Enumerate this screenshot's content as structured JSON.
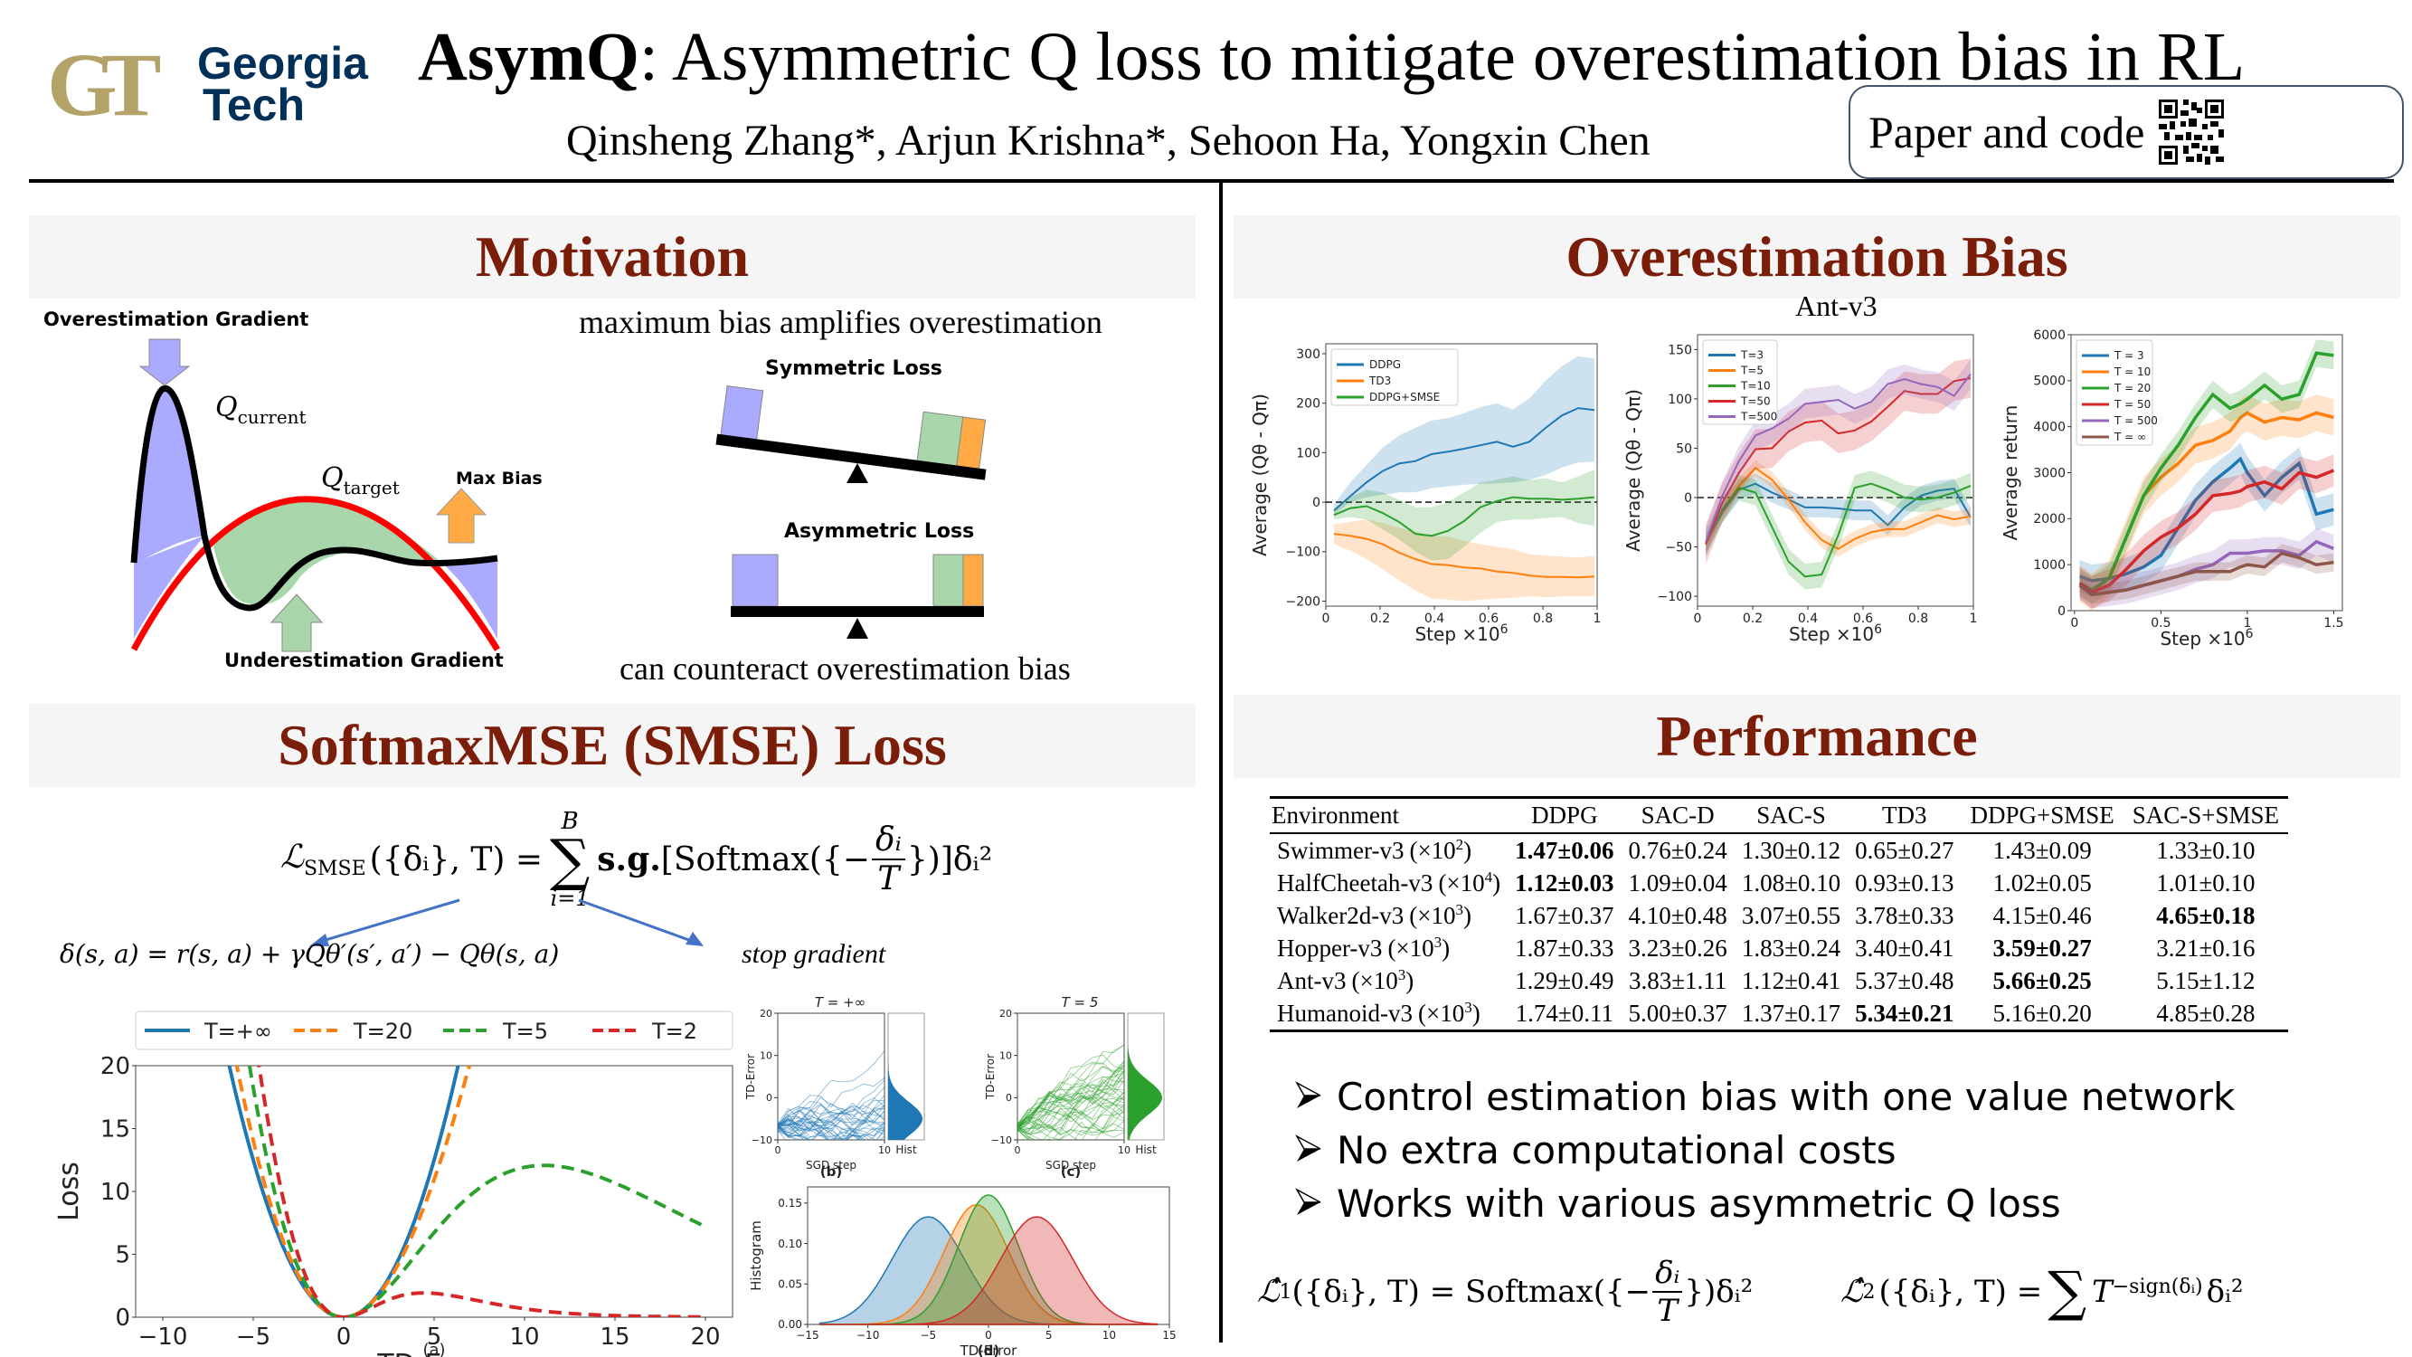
{
  "header": {
    "logo": {
      "mark": "GT",
      "line1": "Georgia",
      "line2": "Tech"
    },
    "title_bold": "AsymQ",
    "title_rest": ": Asymmetric Q loss to mitigate overestimation bias in RL",
    "authors": "Qinsheng Zhang*, Arjun Krishna*, Sehoon Ha, Yongxin Chen",
    "paper_code_label": "Paper and code",
    "qr_icon": "qr-code-icon"
  },
  "colors": {
    "section_title": "#7a1d09",
    "section_bg": "#f5f5f5",
    "blue": "#1f77b4",
    "orange": "#ff7f0e",
    "green": "#2ca02c",
    "red": "#d62728",
    "purple": "#9467bd",
    "brown": "#8c564b"
  },
  "motivation": {
    "title": "Motivation",
    "overestimation_gradient": "Overestimation Gradient",
    "underestimation_gradient": "Underestimation Gradient",
    "q_current": "Q",
    "q_current_sub": "current",
    "q_target": "Q",
    "q_target_sub": "target",
    "max_bias": "Max Bias",
    "caption_top": "maximum bias amplifies overestimation",
    "symmetric_loss": "Symmetric Loss",
    "asymmetric_loss": "Asymmetric Loss",
    "caption_bottom": "can counteract overestimation bias"
  },
  "smse": {
    "title": "SoftmaxMSE (SMSE) Loss",
    "formula_lhs": "ℒ",
    "formula_lhs_sub": "SMSE",
    "formula_args": "({δᵢ}, T) =",
    "sum_top": "B",
    "sum_bottom": "i=1",
    "sg": "s.g.",
    "softmax": "[Softmax({−",
    "frac_num": "δᵢ",
    "frac_den": "T",
    "formula_tail": "})]δᵢ²",
    "td_def": "δ(s, a) = r(s, a) + γQθ′(s′, a′) − Qθ(s, a)",
    "stop_gradient": "stop gradient",
    "fig_a_caption": "(a)",
    "fig_b_caption": "(b)",
    "fig_c_caption": "(c)",
    "fig_d_caption": "(d)"
  },
  "overestimation": {
    "title": "Overestimation Bias",
    "ant_label": "Ant-v3"
  },
  "performance": {
    "title": "Performance",
    "table": {
      "headers": [
        "Environment",
        "DDPG",
        "SAC-D",
        "SAC-S",
        "TD3",
        "DDPG+SMSE",
        "SAC-S+SMSE"
      ],
      "rows": [
        {
          "env": "Swimmer-v3",
          "scale": "(×10",
          "exp": "2",
          "cells": [
            {
              "v": "1.47±0.06",
              "bold": true
            },
            {
              "v": "0.76±0.24"
            },
            {
              "v": "1.30±0.12"
            },
            {
              "v": "0.65±0.27"
            },
            {
              "v": "1.43±0.09"
            },
            {
              "v": "1.33±0.10"
            }
          ]
        },
        {
          "env": "HalfCheetah-v3",
          "scale": "(×10",
          "exp": "4",
          "cells": [
            {
              "v": "1.12±0.03",
              "bold": true
            },
            {
              "v": "1.09±0.04"
            },
            {
              "v": "1.08±0.10"
            },
            {
              "v": "0.93±0.13"
            },
            {
              "v": "1.02±0.05"
            },
            {
              "v": "1.01±0.10"
            }
          ]
        },
        {
          "env": "Walker2d-v3",
          "scale": "(×10",
          "exp": "3",
          "cells": [
            {
              "v": "1.67±0.37"
            },
            {
              "v": "4.10±0.48"
            },
            {
              "v": "3.07±0.55"
            },
            {
              "v": "3.78±0.33"
            },
            {
              "v": "4.15±0.46"
            },
            {
              "v": "4.65±0.18",
              "bold": true
            }
          ]
        },
        {
          "env": "Hopper-v3",
          "scale": "(×10",
          "exp": "3",
          "cells": [
            {
              "v": "1.87±0.33"
            },
            {
              "v": "3.23±0.26"
            },
            {
              "v": "1.83±0.24"
            },
            {
              "v": "3.40±0.41"
            },
            {
              "v": "3.59±0.27",
              "bold": true
            },
            {
              "v": "3.21±0.16"
            }
          ]
        },
        {
          "env": "Ant-v3",
          "scale": "(×10",
          "exp": "3",
          "cells": [
            {
              "v": "1.29±0.49"
            },
            {
              "v": "3.83±1.11"
            },
            {
              "v": "1.12±0.41"
            },
            {
              "v": "5.37±0.48"
            },
            {
              "v": "5.66±0.25",
              "bold": true
            },
            {
              "v": "5.15±1.12"
            }
          ]
        },
        {
          "env": "Humanoid-v3",
          "scale": "(×10",
          "exp": "3",
          "cells": [
            {
              "v": "1.74±0.11"
            },
            {
              "v": "5.00±0.37"
            },
            {
              "v": "1.37±0.17"
            },
            {
              "v": "5.34±0.21",
              "bold": true
            },
            {
              "v": "5.16±0.20"
            },
            {
              "v": "4.85±0.28"
            }
          ]
        }
      ]
    },
    "bullets": [
      "Control estimation bias with one value network",
      "No extra computational costs",
      "Works with various asymmetric Q loss"
    ],
    "loss1": "ℒ̂₁({δᵢ}, T) = Softmax({−δᵢ/T})δᵢ²",
    "loss1_parts": {
      "lhs": "ℒ̂",
      "sub": "1",
      "args": "({δᵢ}, T) = Softmax({−",
      "num": "δᵢ",
      "den": "T",
      "tail": "})δᵢ²"
    },
    "loss2_parts": {
      "lhs": "ℒ̂",
      "sub": "2",
      "args": "({δᵢ}, T) = ",
      "sum": "∑",
      "base": "T",
      "sup": "−sign(δᵢ)",
      "tail": "δᵢ²"
    }
  },
  "chart_data": [
    {
      "id": "loss_curves",
      "type": "line",
      "title": "",
      "xlabel": "TD-Error",
      "ylabel": "Loss",
      "xlim": [
        -11.5,
        21.5
      ],
      "ylim": [
        0,
        20
      ],
      "xticks": [
        -10,
        -5,
        0,
        5,
        10,
        15,
        20
      ],
      "yticks": [
        0,
        5,
        10,
        15,
        20
      ],
      "legend_placement": "top",
      "series": [
        {
          "name": "T=+∞",
          "temperature": null,
          "style": "solid",
          "color": "#1f77b4"
        },
        {
          "name": "T=20",
          "temperature": 20,
          "style": "dashed",
          "color": "#ff7f0e"
        },
        {
          "name": "T=5",
          "temperature": 5,
          "style": "dashed",
          "color": "#2ca02c"
        },
        {
          "name": "T=2",
          "temperature": 2,
          "style": "dashed",
          "color": "#d62728"
        }
      ],
      "x_range_plotted": [
        -10,
        20
      ],
      "caption": "(a)"
    },
    {
      "id": "td_traj_inf",
      "type": "line",
      "title": "T = +∞",
      "xlabel": "SGD step",
      "ylabel": "TD-Error",
      "xlim": [
        0,
        10
      ],
      "ylim": [
        -10,
        20
      ],
      "xticks": [
        0,
        10
      ],
      "yticks": [
        -10,
        0,
        10,
        20
      ],
      "hist_label": "Hist",
      "color": "#1f77b4",
      "start": -7,
      "hist_mean": -5,
      "caption": "(b)"
    },
    {
      "id": "td_traj_5",
      "type": "line",
      "title": "T = 5",
      "xlabel": "SGD step",
      "ylabel": "TD-Error",
      "xlim": [
        0,
        10
      ],
      "ylim": [
        -10,
        20
      ],
      "xticks": [
        0,
        10
      ],
      "yticks": [
        -10,
        0,
        10,
        20
      ],
      "hist_label": "Hist",
      "color": "#2ca02c",
      "start": -7,
      "hist_mean": 0,
      "caption": "(c)"
    },
    {
      "id": "td_hist",
      "type": "area",
      "xlabel": "TD-Error",
      "ylabel": "Histogram",
      "xlim": [
        -15,
        15
      ],
      "ylim": [
        0,
        0.17
      ],
      "xticks": [
        -15,
        -10,
        -5,
        0,
        5,
        10,
        15
      ],
      "yticks": [
        0.0,
        0.05,
        0.1,
        0.15
      ],
      "series": [
        {
          "color": "#1f77b4",
          "mean": -5,
          "peak": 0.133
        },
        {
          "color": "#ff7f0e",
          "mean": -1,
          "peak": 0.148
        },
        {
          "color": "#2ca02c",
          "mean": 0,
          "peak": 0.16
        },
        {
          "color": "#d62728",
          "mean": 4,
          "peak": 0.133
        }
      ],
      "caption": "(d)"
    },
    {
      "id": "bias_ddpg",
      "type": "line",
      "xlabel": "Step ×10^6",
      "ylabel": "Average (Qθ - Qπ)",
      "xlim": [
        0,
        1.0
      ],
      "ylim": [
        -210,
        320
      ],
      "xticks": [
        0.0,
        0.2,
        0.4,
        0.6,
        0.8,
        1.0
      ],
      "yticks": [
        -200,
        -100,
        0,
        100,
        200,
        300
      ],
      "legend_placement": "top-left",
      "zero_line": true,
      "x": [
        0.03,
        0.09,
        0.15,
        0.21,
        0.27,
        0.33,
        0.39,
        0.45,
        0.51,
        0.57,
        0.63,
        0.69,
        0.75,
        0.81,
        0.87,
        0.93,
        0.99
      ],
      "series": [
        {
          "name": "DDPG",
          "color": "#1f77b4",
          "values": [
            -17,
            12,
            40,
            63,
            78,
            83,
            97,
            102,
            108,
            115,
            122,
            112,
            122,
            150,
            175,
            190,
            186
          ],
          "lower": [
            -25,
            0,
            10,
            15,
            20,
            20,
            28,
            32,
            35,
            37,
            38,
            40,
            45,
            55,
            70,
            80,
            82
          ],
          "upper": [
            -5,
            40,
            75,
            110,
            135,
            150,
            165,
            170,
            180,
            192,
            200,
            187,
            210,
            245,
            275,
            295,
            290
          ]
        },
        {
          "name": "TD3",
          "color": "#ff7f0e",
          "values": [
            -64,
            -68,
            -74,
            -85,
            -102,
            -115,
            -125,
            -127,
            -132,
            -134,
            -140,
            -143,
            -148,
            -151,
            -151,
            -152,
            -150
          ],
          "lower": [
            -85,
            -98,
            -115,
            -135,
            -158,
            -178,
            -195,
            -197,
            -200,
            -197,
            -195,
            -193,
            -190,
            -192,
            -190,
            -190,
            -190
          ],
          "upper": [
            -45,
            -40,
            -35,
            -42,
            -52,
            -60,
            -68,
            -70,
            -78,
            -85,
            -90,
            -95,
            -105,
            -108,
            -110,
            -112,
            -108
          ]
        },
        {
          "name": "DDPG+SMSE",
          "color": "#2ca02c",
          "values": [
            -26,
            -12,
            -8,
            -22,
            -40,
            -64,
            -68,
            -58,
            -38,
            -10,
            2,
            10,
            7,
            7,
            5,
            7,
            10
          ],
          "lower": [
            -35,
            -30,
            -35,
            -55,
            -75,
            -100,
            -118,
            -115,
            -90,
            -62,
            -40,
            -35,
            -35,
            -32,
            -30,
            -42,
            -48
          ],
          "upper": [
            -15,
            10,
            25,
            20,
            5,
            -10,
            -10,
            0,
            20,
            40,
            45,
            52,
            45,
            48,
            40,
            52,
            66
          ]
        }
      ]
    },
    {
      "id": "bias_ant_temps",
      "type": "line",
      "title": "Ant-v3",
      "xlabel": "Step ×10^6",
      "ylabel": "Average (Qθ - Qπ)",
      "xlim": [
        0,
        1.0
      ],
      "ylim": [
        -110,
        165
      ],
      "xticks": [
        0.0,
        0.2,
        0.4,
        0.6,
        0.8,
        1.0
      ],
      "yticks": [
        -100,
        -50,
        0,
        50,
        100,
        150
      ],
      "legend_placement": "top-left",
      "zero_line": true,
      "x": [
        0.03,
        0.09,
        0.15,
        0.21,
        0.27,
        0.33,
        0.39,
        0.45,
        0.51,
        0.57,
        0.63,
        0.69,
        0.75,
        0.81,
        0.87,
        0.93,
        0.99
      ],
      "series": [
        {
          "name": "T=3",
          "color": "#1f77b4",
          "values": [
            -47,
            -15,
            8,
            14,
            5,
            -2,
            -10,
            -10,
            -11,
            -13,
            -13,
            -28,
            -10,
            2,
            7,
            9,
            -20
          ],
          "band": 10
        },
        {
          "name": "T=5",
          "color": "#ff7f0e",
          "values": [
            -48,
            -12,
            12,
            30,
            18,
            -2,
            -25,
            -43,
            -52,
            -42,
            -35,
            -32,
            -32,
            -25,
            -18,
            -22,
            -19
          ],
          "band": 8
        },
        {
          "name": "T=10",
          "color": "#2ca02c",
          "values": [
            -46,
            -12,
            10,
            5,
            -30,
            -65,
            -80,
            -78,
            -38,
            10,
            14,
            8,
            0,
            -2,
            0,
            5,
            12
          ],
          "band": 13
        },
        {
          "name": "T=50",
          "color": "#d62728",
          "values": [
            -47,
            -5,
            25,
            49,
            50,
            67,
            76,
            78,
            65,
            68,
            77,
            92,
            108,
            105,
            105,
            118,
            121
          ],
          "band": 20
        },
        {
          "name": "T=500",
          "color": "#9467bd",
          "values": [
            -45,
            2,
            37,
            63,
            70,
            80,
            95,
            97,
            99,
            90,
            97,
            115,
            120,
            115,
            112,
            103,
            125
          ],
          "band": 15
        }
      ]
    },
    {
      "id": "return_ant_temps",
      "type": "line",
      "xlabel": "Step ×10^6",
      "ylabel": "Average return",
      "xlim": [
        -0.02,
        1.55
      ],
      "ylim": [
        0,
        6000
      ],
      "xticks": [
        0.0,
        0.5,
        1.0,
        1.5
      ],
      "yticks": [
        0,
        1000,
        2000,
        3000,
        4000,
        5000,
        6000
      ],
      "legend_placement": "top-left",
      "x": [
        0.03,
        0.1,
        0.2,
        0.3,
        0.4,
        0.5,
        0.6,
        0.7,
        0.8,
        0.9,
        0.96,
        1.0,
        1.1,
        1.2,
        1.3,
        1.4,
        1.5
      ],
      "series": [
        {
          "name": "T = 3",
          "color": "#1f77b4",
          "values": [
            750,
            650,
            700,
            800,
            950,
            1200,
            1800,
            2400,
            2800,
            3100,
            3300,
            3000,
            2500,
            2900,
            3200,
            2100,
            2200
          ],
          "band": 350
        },
        {
          "name": "T = 10",
          "color": "#ff7f0e",
          "values": [
            600,
            400,
            700,
            1600,
            2500,
            2900,
            3200,
            3600,
            3700,
            3900,
            4200,
            4300,
            4100,
            4200,
            4150,
            4300,
            4200
          ],
          "band": 400
        },
        {
          "name": "T = 20",
          "color": "#2ca02c",
          "values": [
            600,
            450,
            700,
            1600,
            2500,
            3100,
            3600,
            4200,
            4700,
            4400,
            4500,
            4600,
            4900,
            4600,
            4700,
            5600,
            5550
          ],
          "band": 300
        },
        {
          "name": "T = 50",
          "color": "#d62728",
          "values": [
            600,
            400,
            550,
            900,
            1300,
            1600,
            1800,
            2100,
            2500,
            2550,
            2600,
            2700,
            2800,
            2650,
            3000,
            2900,
            3050
          ],
          "band": 350
        },
        {
          "name": "T = 500",
          "color": "#9467bd",
          "values": [
            550,
            350,
            400,
            450,
            550,
            650,
            750,
            900,
            1000,
            1250,
            1250,
            1250,
            1300,
            1300,
            1200,
            1500,
            1350
          ],
          "band": 300
        },
        {
          "name": "T = ∞",
          "color": "#8c564b",
          "values": [
            550,
            350,
            400,
            450,
            550,
            650,
            750,
            850,
            850,
            850,
            950,
            1000,
            950,
            1250,
            1150,
            1000,
            1050
          ],
          "band": 200
        }
      ]
    }
  ]
}
